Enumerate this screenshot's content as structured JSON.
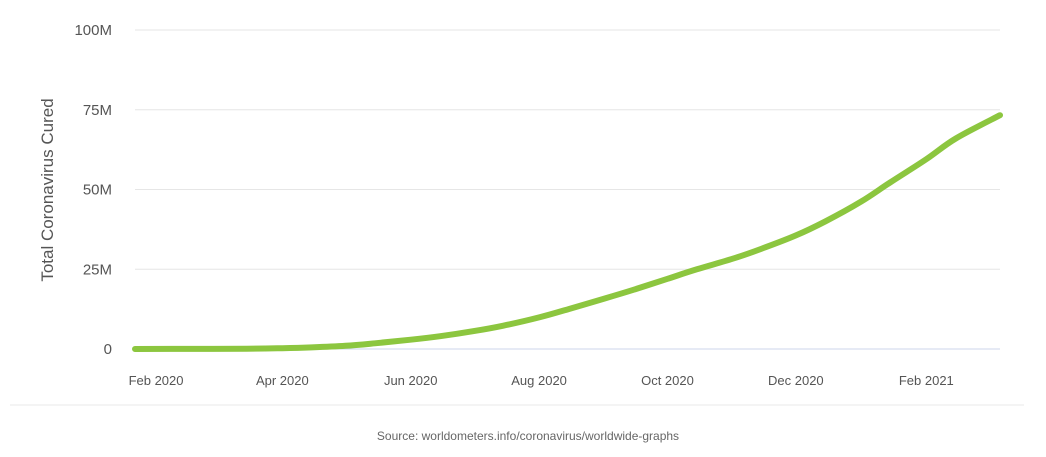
{
  "chart_data": {
    "type": "line",
    "title": "",
    "xlabel": "",
    "ylabel": "Total Coronavirus Cured",
    "source": "Source: worldometers.info/coronavirus/worldwide-graphs",
    "ylim": [
      0,
      100000000
    ],
    "xlim": [
      "2020-01-22",
      "2021-03-08"
    ],
    "grid": true,
    "legend": "none",
    "y_ticks": [
      {
        "value": 0,
        "label": "0"
      },
      {
        "value": 25000000,
        "label": "25M"
      },
      {
        "value": 50000000,
        "label": "50M"
      },
      {
        "value": 75000000,
        "label": "75M"
      },
      {
        "value": 100000000,
        "label": "100M"
      }
    ],
    "x_ticks": [
      {
        "value": "2020-02-01",
        "label": "Feb 2020"
      },
      {
        "value": "2020-04-01",
        "label": "Apr 2020"
      },
      {
        "value": "2020-06-01",
        "label": "Jun 2020"
      },
      {
        "value": "2020-08-01",
        "label": "Aug 2020"
      },
      {
        "value": "2020-10-01",
        "label": "Oct 2020"
      },
      {
        "value": "2020-12-01",
        "label": "Dec 2020"
      },
      {
        "value": "2021-02-01",
        "label": "Feb 2021"
      }
    ],
    "series": [
      {
        "color": "#8cc63f",
        "x": [
          "2020-01-22",
          "2020-02-15",
          "2020-03-15",
          "2020-04-01",
          "2020-04-15",
          "2020-05-01",
          "2020-05-15",
          "2020-06-01",
          "2020-06-15",
          "2020-07-01",
          "2020-07-15",
          "2020-08-01",
          "2020-08-15",
          "2020-09-01",
          "2020-09-15",
          "2020-10-01",
          "2020-10-15",
          "2020-11-01",
          "2020-11-15",
          "2020-12-01",
          "2020-12-15",
          "2021-01-01",
          "2021-01-15",
          "2021-02-01",
          "2021-02-15",
          "2021-03-08"
        ],
        "values": [
          0,
          30000,
          80000,
          250000,
          500000,
          1000000,
          1800000,
          2900000,
          4000000,
          5600000,
          7300000,
          9900000,
          12500000,
          15800000,
          18600000,
          22000000,
          25000000,
          28300000,
          31500000,
          35600000,
          40000000,
          46200000,
          52300000,
          59500000,
          66000000,
          73300000
        ]
      }
    ]
  }
}
